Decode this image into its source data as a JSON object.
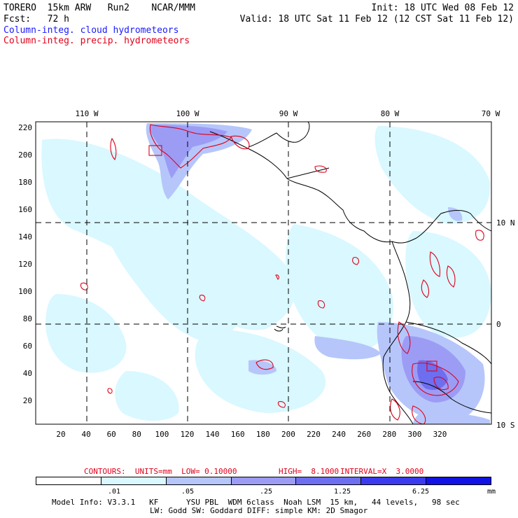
{
  "header": {
    "model": "TORERO  15km ARW   Run2    NCAR/MMM",
    "init": "Init: 18 UTC Wed 08 Feb 12",
    "fcst": "Fcst:   72 h",
    "valid": "Valid: 18 UTC Sat 11 Feb 12 (12 CST Sat 11 Feb 12)",
    "field1": "Column-integ. cloud hydrometeors",
    "field2": "Column-integ. precip. hydrometeors"
  },
  "axes": {
    "lon_labels": [
      "110 W",
      "100 W",
      "90 W",
      "80 W",
      "70 W"
    ],
    "lat_labels": [
      "10 N",
      "0",
      "10 S"
    ],
    "x_ticks": [
      "20",
      "40",
      "60",
      "80",
      "100",
      "120",
      "140",
      "160",
      "180",
      "200",
      "220",
      "240",
      "260",
      "280",
      "300",
      "320"
    ],
    "y_ticks": [
      "220",
      "200",
      "180",
      "160",
      "140",
      "120",
      "100",
      "80",
      "60",
      "40",
      "20"
    ]
  },
  "contour_info": {
    "units": "CONTOURS:  UNITS=mm  LOW= 0.10000",
    "high": "HIGH=  8.1000",
    "interval": "INTERVAL=X  3.0000"
  },
  "colorbar": {
    "labels": [
      ".01",
      ".05",
      ".25",
      "1.25",
      "6.25"
    ],
    "unit": "mm",
    "colors": [
      "#ffffff",
      "#d9f8ff",
      "#b6c6fb",
      "#9c9cf5",
      "#6e6ef0",
      "#3a3aee",
      "#1212e6"
    ]
  },
  "footer": {
    "line1": "Model Info: V3.3.1   KF      YSU PBL  WDM 6class  Noah LSM  15 km,   44 levels,   98 sec",
    "line2": "LW: Godd SW: Goddard DIFF: simple KM: 2D Smagor"
  }
}
